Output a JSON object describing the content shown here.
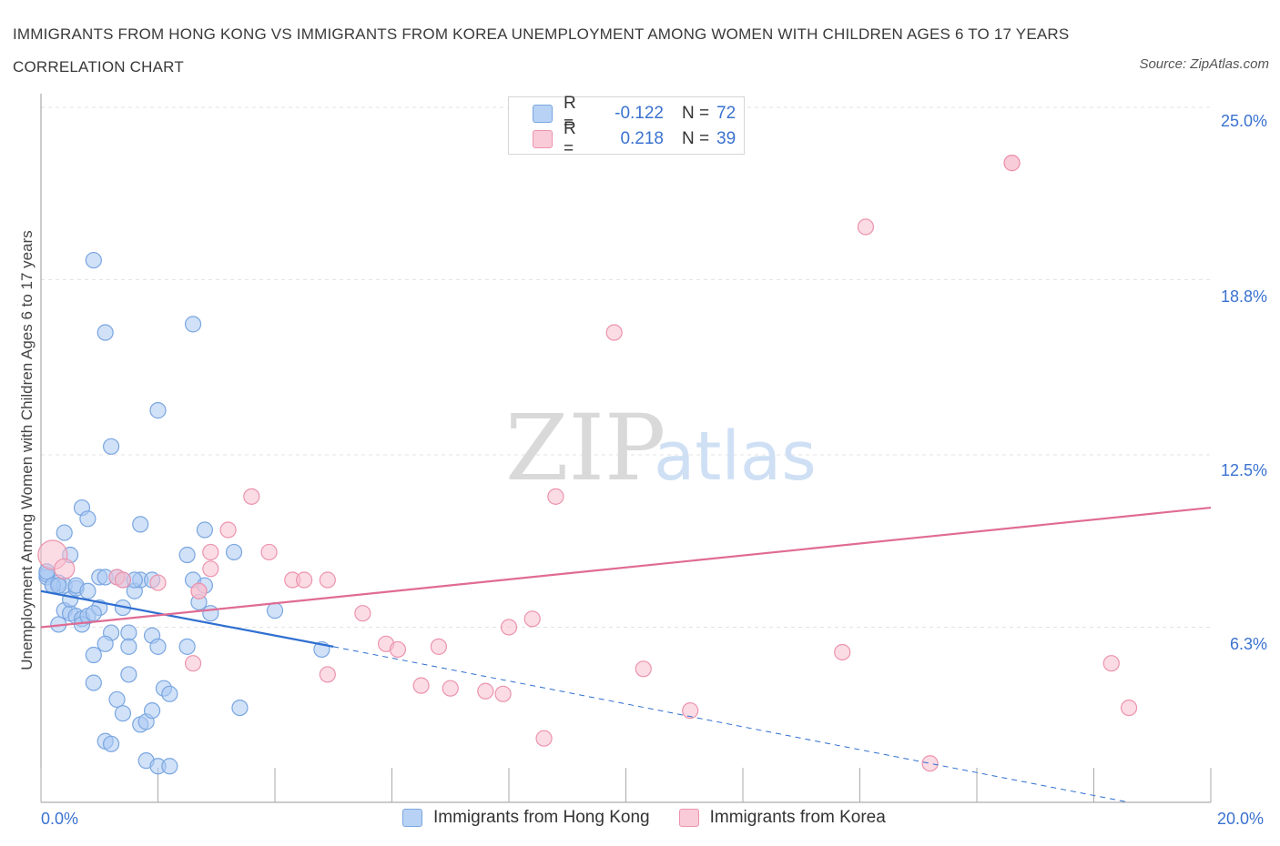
{
  "header": {
    "title": "IMMIGRANTS FROM HONG KONG VS IMMIGRANTS FROM KOREA UNEMPLOYMENT AMONG WOMEN WITH CHILDREN AGES 6 TO 17 YEARS CORRELATION CHART",
    "source": "Source: ZipAtlas.com"
  },
  "watermark": {
    "zip": "ZIP",
    "atlas": "atlas"
  },
  "colors": {
    "hong_kong_fill": "#a9c8f2",
    "hong_kong_stroke": "#7aa6e0",
    "hong_kong_line": "#2f6fd0",
    "korea_fill": "#f7bfd0",
    "korea_stroke": "#ec93ad",
    "korea_line": "#e06b93",
    "tick_label": "#3a72d0",
    "grid": "#e3e3e3"
  },
  "stats_legend": {
    "rows": [
      {
        "r_label": "R =",
        "r_value": "-0.122",
        "n_label": "N =",
        "n_value": "72",
        "series": "hong_kong"
      },
      {
        "r_label": "R =",
        "r_value": "0.218",
        "n_label": "N =",
        "n_value": "39",
        "series": "korea"
      }
    ]
  },
  "chart_data": {
    "type": "scatter",
    "title": "IMMIGRANTS FROM HONG KONG VS IMMIGRANTS FROM KOREA UNEMPLOYMENT AMONG WOMEN WITH CHILDREN AGES 6 TO 17 YEARS CORRELATION CHART",
    "xlabel": "",
    "ylabel": "Unemployment Among Women with Children Ages 6 to 17 years",
    "xlim": [
      0,
      20
    ],
    "ylim": [
      0,
      25
    ],
    "x_tick_labels": [
      "0.0%",
      "20.0%"
    ],
    "y_ticks": [
      {
        "value": 25.0,
        "label": "25.0%"
      },
      {
        "value": 18.8,
        "label": "18.8%"
      },
      {
        "value": 12.5,
        "label": "12.5%"
      },
      {
        "value": 6.3,
        "label": "6.3%"
      }
    ],
    "grid": true,
    "legend_position": "bottom",
    "series": [
      {
        "name": "Immigrants from Hong Kong",
        "key": "hong_kong",
        "points": [
          [
            0.1,
            8.1
          ],
          [
            0.1,
            8.2
          ],
          [
            0.2,
            7.8
          ],
          [
            0.3,
            7.9
          ],
          [
            0.4,
            7.8
          ],
          [
            0.3,
            6.4
          ],
          [
            0.4,
            6.9
          ],
          [
            0.5,
            6.8
          ],
          [
            0.5,
            7.3
          ],
          [
            0.6,
            6.7
          ],
          [
            0.6,
            7.7
          ],
          [
            0.7,
            6.6
          ],
          [
            0.7,
            6.4
          ],
          [
            0.8,
            6.7
          ],
          [
            1.0,
            7.0
          ],
          [
            1.0,
            8.1
          ],
          [
            1.1,
            8.1
          ],
          [
            1.2,
            6.1
          ],
          [
            1.1,
            5.7
          ],
          [
            1.4,
            7.0
          ],
          [
            1.4,
            8.0
          ],
          [
            1.5,
            6.1
          ],
          [
            1.6,
            7.6
          ],
          [
            1.7,
            8.0
          ],
          [
            1.6,
            8.0
          ],
          [
            1.5,
            5.6
          ],
          [
            1.9,
            6.0
          ],
          [
            2.0,
            5.6
          ],
          [
            2.1,
            4.1
          ],
          [
            2.2,
            3.9
          ],
          [
            2.5,
            5.6
          ],
          [
            2.6,
            8.0
          ],
          [
            2.7,
            7.2
          ],
          [
            2.9,
            6.8
          ],
          [
            2.8,
            7.8
          ],
          [
            0.4,
            9.7
          ],
          [
            0.5,
            8.9
          ],
          [
            0.7,
            10.6
          ],
          [
            0.8,
            10.2
          ],
          [
            0.9,
            5.3
          ],
          [
            0.9,
            4.3
          ],
          [
            1.3,
            3.7
          ],
          [
            1.4,
            3.2
          ],
          [
            1.5,
            4.6
          ],
          [
            1.7,
            2.8
          ],
          [
            1.8,
            2.9
          ],
          [
            1.9,
            3.3
          ],
          [
            1.8,
            1.5
          ],
          [
            2.0,
            1.3
          ],
          [
            2.2,
            1.3
          ],
          [
            1.1,
            2.2
          ],
          [
            1.2,
            2.1
          ],
          [
            1.2,
            12.8
          ],
          [
            1.7,
            10.0
          ],
          [
            2.5,
            8.9
          ],
          [
            2.8,
            9.8
          ],
          [
            3.3,
            9.0
          ],
          [
            3.4,
            3.4
          ],
          [
            4.0,
            6.9
          ],
          [
            4.8,
            5.5
          ],
          [
            0.9,
            19.5
          ],
          [
            1.1,
            16.9
          ],
          [
            2.6,
            17.2
          ],
          [
            2.0,
            14.1
          ],
          [
            0.1,
            8.3
          ],
          [
            0.2,
            7.8
          ],
          [
            0.6,
            7.8
          ],
          [
            0.3,
            7.8
          ],
          [
            1.3,
            8.1
          ],
          [
            1.9,
            8.0
          ],
          [
            0.8,
            7.6
          ],
          [
            0.9,
            6.8
          ]
        ]
      },
      {
        "name": "Immigrants from Korea",
        "key": "korea",
        "size_points": [
          [
            0.2,
            8.9
          ],
          [
            0.4,
            8.4
          ]
        ],
        "points": [
          [
            0.2,
            8.9
          ],
          [
            0.4,
            8.4
          ],
          [
            1.3,
            8.1
          ],
          [
            1.4,
            8.0
          ],
          [
            2.0,
            7.9
          ],
          [
            2.7,
            7.6
          ],
          [
            2.7,
            7.6
          ],
          [
            2.9,
            8.4
          ],
          [
            2.9,
            9.0
          ],
          [
            3.2,
            9.8
          ],
          [
            3.6,
            11.0
          ],
          [
            3.9,
            9.0
          ],
          [
            4.3,
            8.0
          ],
          [
            4.5,
            8.0
          ],
          [
            4.9,
            8.0
          ],
          [
            5.5,
            6.8
          ],
          [
            5.9,
            5.7
          ],
          [
            6.1,
            5.5
          ],
          [
            6.8,
            5.6
          ],
          [
            6.5,
            4.2
          ],
          [
            7.0,
            4.1
          ],
          [
            7.6,
            4.0
          ],
          [
            7.9,
            3.9
          ],
          [
            8.0,
            6.3
          ],
          [
            8.4,
            6.6
          ],
          [
            8.6,
            2.3
          ],
          [
            8.8,
            11.0
          ],
          [
            9.8,
            16.9
          ],
          [
            10.3,
            4.8
          ],
          [
            11.1,
            3.3
          ],
          [
            13.7,
            5.4
          ],
          [
            14.1,
            20.7
          ],
          [
            15.2,
            1.4
          ],
          [
            16.6,
            23.0
          ],
          [
            16.6,
            23.0
          ],
          [
            18.3,
            5.0
          ],
          [
            18.6,
            3.4
          ],
          [
            2.6,
            5.0
          ],
          [
            4.9,
            4.6
          ]
        ]
      }
    ],
    "trend_lines": [
      {
        "series": "hong_kong",
        "from": [
          0,
          7.6
        ],
        "to": [
          5.0,
          5.6
        ],
        "style": "solid"
      },
      {
        "series": "hong_kong",
        "from": [
          5.0,
          5.6
        ],
        "to": [
          18.6,
          0.0
        ],
        "style": "dashed"
      },
      {
        "series": "korea",
        "from": [
          0,
          6.3
        ],
        "to": [
          20,
          10.6
        ],
        "style": "solid"
      }
    ]
  },
  "bottom_legend": [
    {
      "label": "Immigrants from Hong Kong",
      "series": "hong_kong"
    },
    {
      "label": "Immigrants from Korea",
      "series": "korea"
    }
  ]
}
